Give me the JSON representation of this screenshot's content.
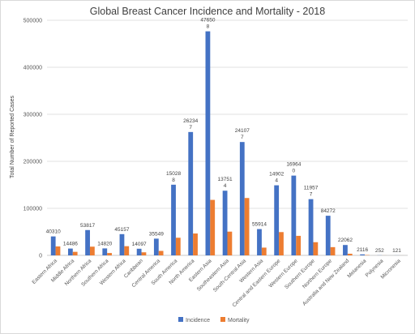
{
  "chart_data": {
    "type": "bar",
    "title": "Global Breast Cancer Incidence and Mortality - 2018",
    "xlabel": "",
    "ylabel": "Total Number of Reported Cases",
    "ylim": [
      0,
      500000
    ],
    "yticks": [
      0,
      100000,
      200000,
      300000,
      400000,
      500000
    ],
    "ytick_labels": [
      "0",
      "100000",
      "200000",
      "300000",
      "400000",
      "500000"
    ],
    "grid": true,
    "legend_position": "bottom",
    "categories": [
      "Eastern Africa",
      "Middle Africa",
      "Northern Africa",
      "Southern Africa",
      "Western Africa",
      "Caribbean",
      "Central America",
      "South America",
      "North America",
      "Eastern Asia",
      "Southeastern Asia",
      "South-Central Asia",
      "Western Asia",
      "Central and Eastern Europe",
      "Western Europe",
      "Southern Europe",
      "Northern Europe",
      "Australia and New Zealand",
      "Melanesia",
      "Polynesia",
      "Micronesia"
    ],
    "series": [
      {
        "name": "Incidence",
        "color": "#4472c4",
        "values": [
          40310,
          14486,
          53817,
          14820,
          45157,
          14097,
          35549,
          150288,
          262347,
          476508,
          137514,
          241077,
          55914,
          149024,
          169640,
          119577,
          84272,
          22062,
          2116,
          252,
          121
        ],
        "labels": [
          "40310",
          "14486",
          "53817",
          "14820",
          "45157",
          "14097",
          "35549",
          "150288",
          "262347",
          "476508",
          "137514",
          "241077",
          "55914",
          "149024",
          "169640",
          "119577",
          "84272",
          "22062",
          "2116",
          "252",
          "121"
        ]
      },
      {
        "name": "Mortality",
        "color": "#ed7d31",
        "values": [
          19000,
          7500,
          18500,
          5000,
          19500,
          6500,
          9500,
          37500,
          46500,
          118000,
          50500,
          122000,
          16500,
          49500,
          41500,
          28000,
          17500,
          3500,
          700,
          80,
          40
        ]
      }
    ]
  }
}
